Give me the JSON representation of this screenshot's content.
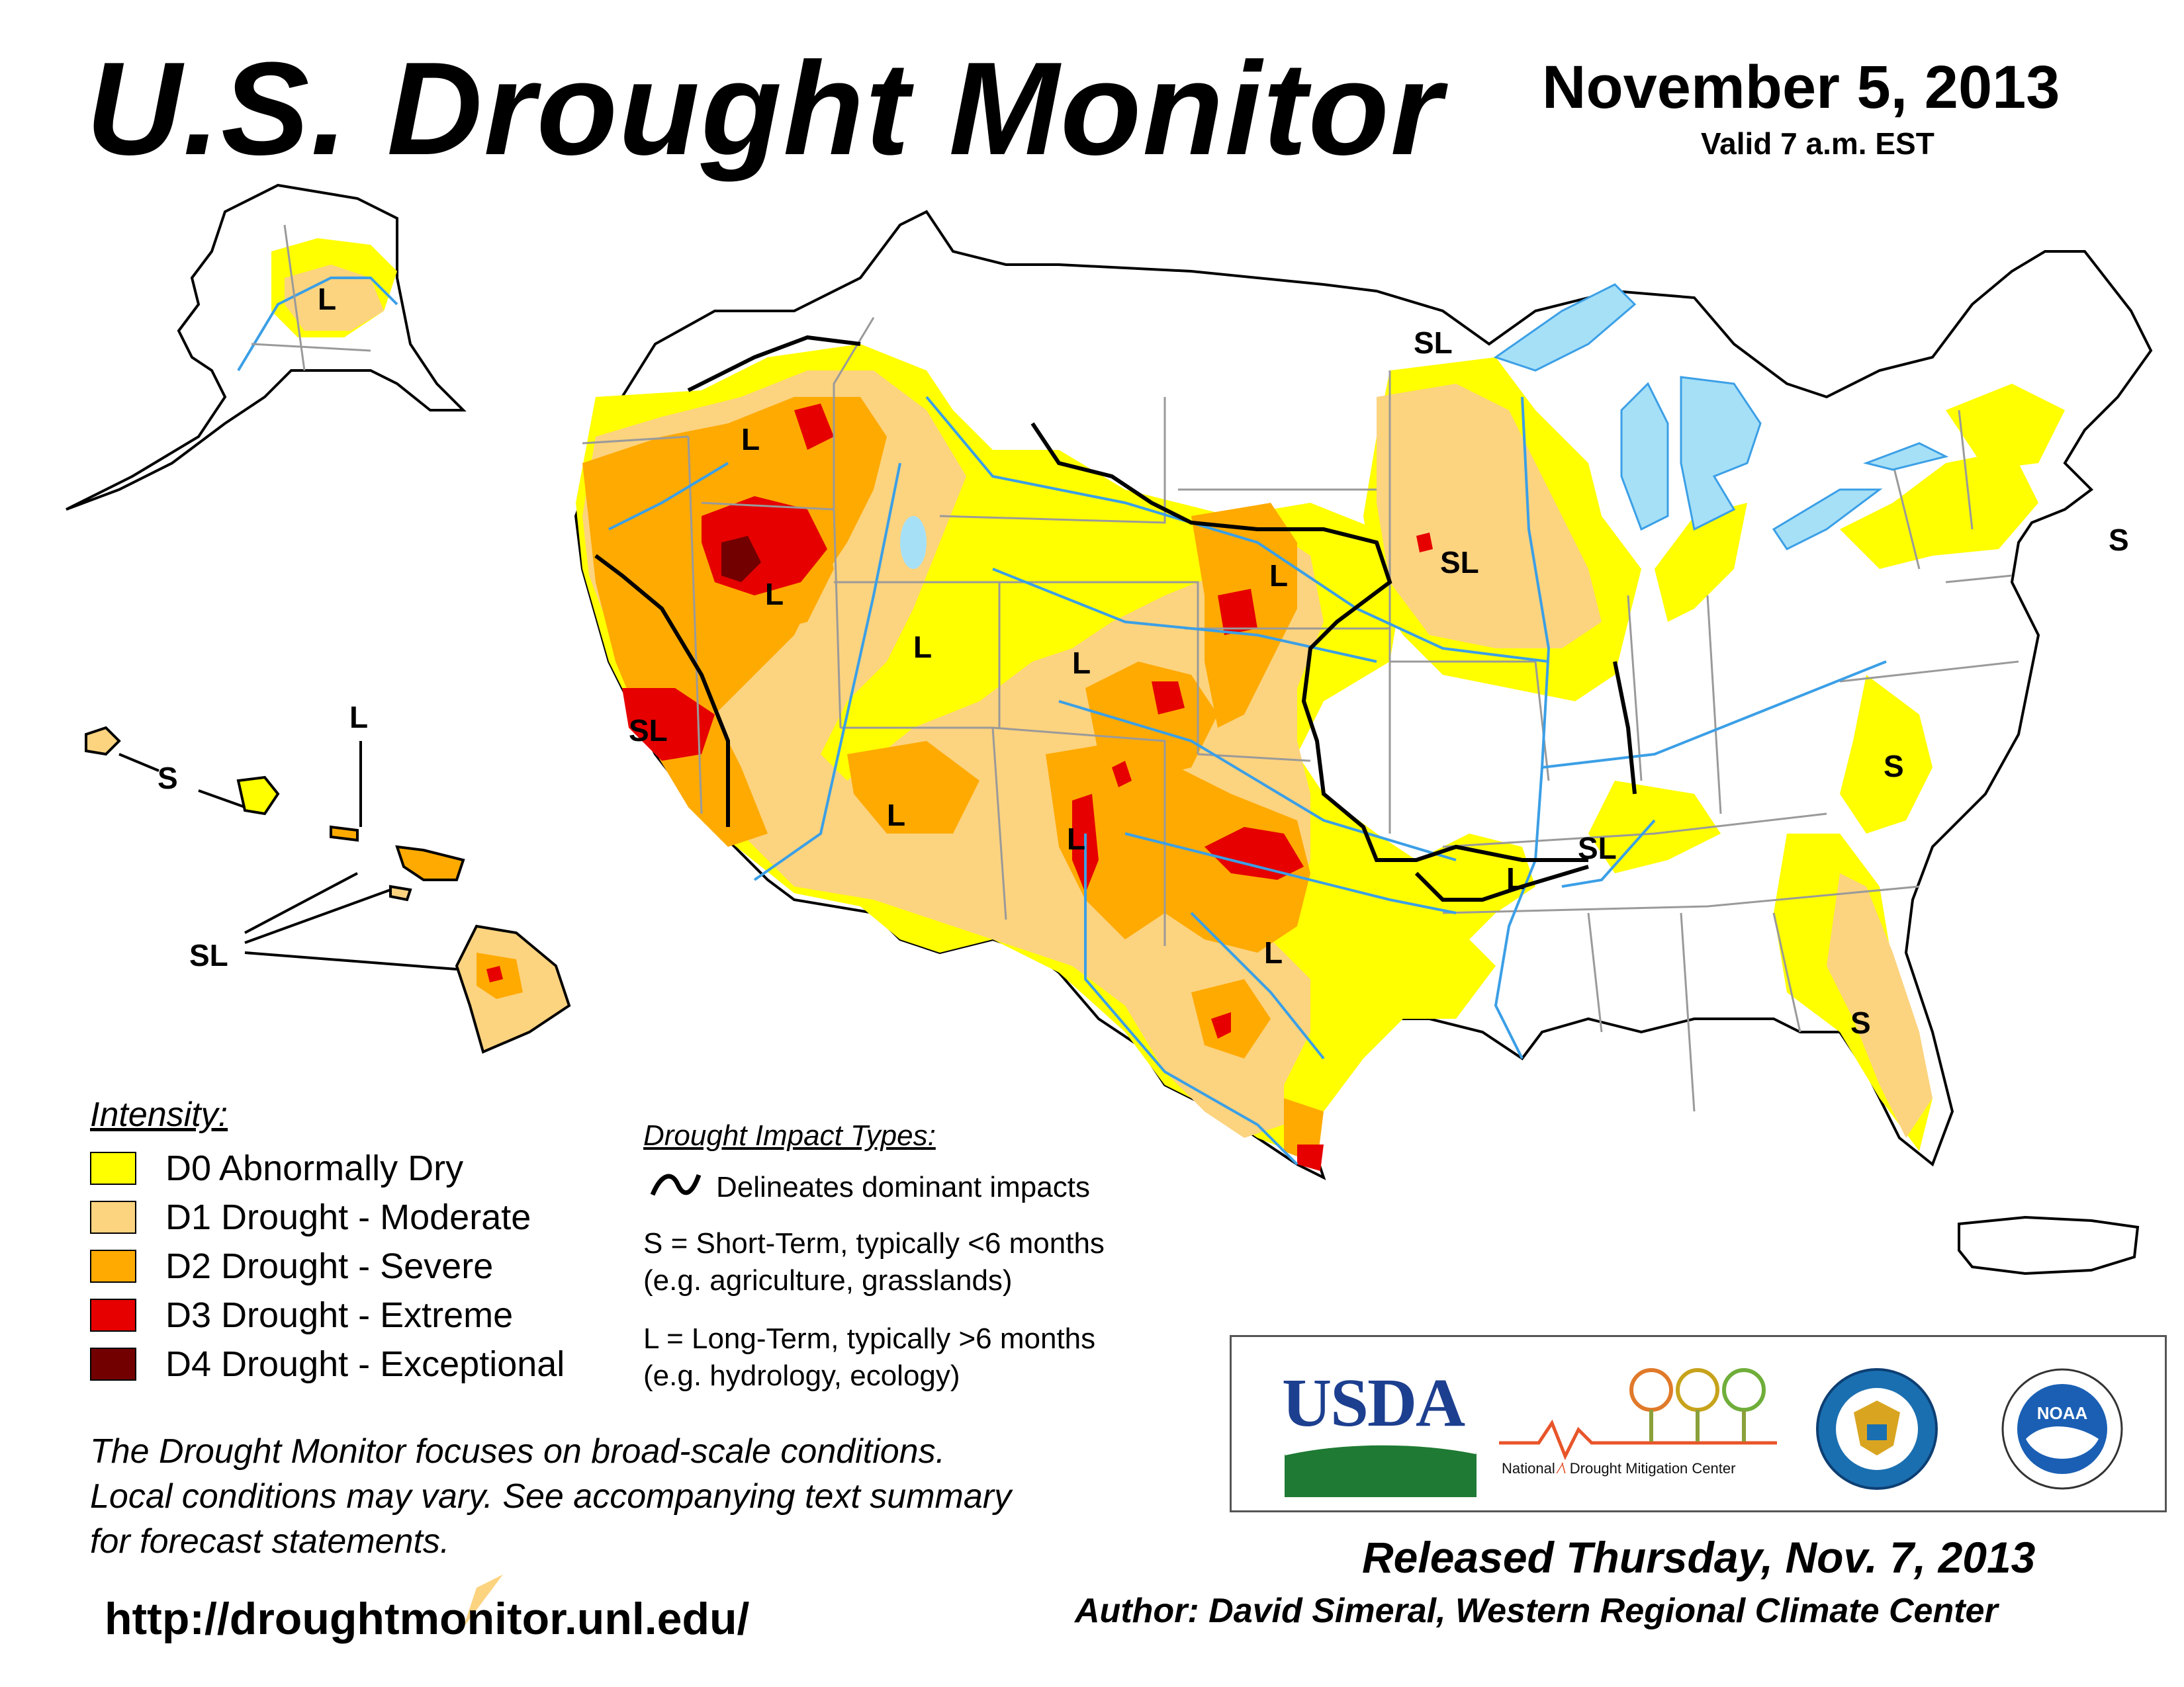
{
  "header": {
    "title": "U.S. Drought Monitor",
    "date": "November 5, 2013",
    "valid": "Valid 7 a.m. EST"
  },
  "colors": {
    "d0": "#ffff00",
    "d1": "#fcd37f",
    "d2": "#ffaa00",
    "d3": "#e60000",
    "d4": "#730000",
    "water": "#a6e0f7",
    "rivers": "#3b9fe6",
    "boundaries": "#9a9a9a"
  },
  "legend": {
    "title": "Intensity:",
    "items": [
      {
        "code": "d0",
        "label": "D0 Abnormally Dry"
      },
      {
        "code": "d1",
        "label": "D1 Drought - Moderate"
      },
      {
        "code": "d2",
        "label": "D2 Drought - Severe"
      },
      {
        "code": "d3",
        "label": "D3 Drought - Extreme"
      },
      {
        "code": "d4",
        "label": "D4 Drought - Exceptional"
      }
    ]
  },
  "impacts": {
    "title": "Drought Impact Types:",
    "delineates": "Delineates dominant impacts",
    "short_line1": "S = Short-Term, typically <6 months",
    "short_line2": "(e.g. agriculture, grasslands)",
    "long_line1": "L = Long-Term, typically >6 months",
    "long_line2": "(e.g. hydrology, ecology)"
  },
  "map_labels": {
    "alaska": "L",
    "hawaii_s": "S",
    "hawaii_l": "L",
    "hawaii_sl": "SL",
    "oregon": "L",
    "nevada": "L",
    "utah": "L",
    "california": "SL",
    "colorado": "L",
    "arizona": "L",
    "new_mexico": "L",
    "nebraska": "L",
    "texas": "L",
    "minnesota": "SL",
    "iowa": "SL",
    "tennessee": "SL",
    "arkansas": "L",
    "virginia": "S",
    "georgia": "S",
    "florida": "S",
    "massachusetts": "S"
  },
  "notes": {
    "line1": "The Drought Monitor focuses on broad-scale conditions.",
    "line2": "Local conditions may vary. See accompanying text summary",
    "line3": "for forecast statements."
  },
  "footer": {
    "url": "http://droughtmonitor.unl.edu/",
    "released": "Released Thursday, Nov. 7, 2013",
    "author": "Author: David Simeral, Western Regional Climate Center"
  },
  "logos": {
    "usda": "USDA",
    "ndmc_part1": "National",
    "ndmc_part2": "Drought Mitigation Center",
    "commerce": "commerce-seal-icon",
    "noaa": "NOAA"
  }
}
